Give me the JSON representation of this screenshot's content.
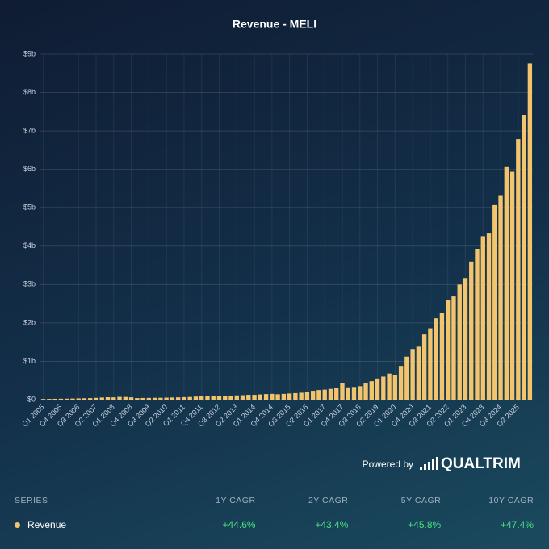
{
  "chart_data": {
    "type": "bar",
    "title": "Revenue - MELI",
    "categories": [
      "Q1 2005",
      null,
      null,
      "Q4 2005",
      null,
      null,
      "Q3 2006",
      null,
      null,
      "Q2 2007",
      null,
      null,
      "Q1 2008",
      null,
      null,
      "Q4 2008",
      null,
      null,
      "Q3 2009",
      null,
      null,
      "Q2 2010",
      null,
      null,
      "Q1 2011",
      null,
      null,
      "Q4 2011",
      null,
      null,
      "Q3 2012",
      null,
      null,
      "Q2 2013",
      null,
      null,
      "Q1 2014",
      null,
      null,
      "Q4 2014",
      null,
      null,
      "Q3 2015",
      null,
      null,
      "Q2 2016",
      null,
      null,
      "Q1 2017",
      null,
      null,
      "Q4 2017",
      null,
      null,
      "Q3 2018",
      null,
      null,
      "Q2 2019",
      null,
      null,
      "Q1 2020",
      null,
      null,
      "Q4 2020",
      null,
      null,
      "Q3 2021",
      null,
      null,
      "Q2 2022",
      null,
      null,
      "Q1 2023",
      null,
      null,
      "Q4 2023",
      null,
      null,
      "Q3 2024",
      null,
      null,
      "Q2 2025",
      null,
      null
    ],
    "values": [
      0.018,
      0.02,
      0.022,
      0.024,
      0.025,
      0.029,
      0.033,
      0.037,
      0.04,
      0.047,
      0.055,
      0.063,
      0.06,
      0.072,
      0.07,
      0.06,
      0.04,
      0.043,
      0.045,
      0.048,
      0.048,
      0.052,
      0.056,
      0.06,
      0.065,
      0.07,
      0.08,
      0.085,
      0.09,
      0.095,
      0.095,
      0.1,
      0.105,
      0.11,
      0.115,
      0.125,
      0.125,
      0.135,
      0.145,
      0.15,
      0.14,
      0.15,
      0.16,
      0.17,
      0.18,
      0.2,
      0.23,
      0.25,
      0.26,
      0.28,
      0.3,
      0.43,
      0.32,
      0.33,
      0.35,
      0.42,
      0.48,
      0.55,
      0.6,
      0.68,
      0.65,
      0.88,
      1.12,
      1.32,
      1.38,
      1.7,
      1.86,
      2.12,
      2.25,
      2.6,
      2.69,
      3.0,
      3.17,
      3.6,
      3.93,
      4.26,
      4.33,
      5.07,
      5.31,
      6.06,
      5.94,
      6.79,
      7.41,
      8.76
    ],
    "series_name": "Revenue",
    "color": "#f2c46d",
    "ylim": [
      0,
      9
    ],
    "yticks": [
      {
        "value": 0,
        "label": "$0"
      },
      {
        "value": 1,
        "label": "$1b"
      },
      {
        "value": 2,
        "label": "$2b"
      },
      {
        "value": 3,
        "label": "$3b"
      },
      {
        "value": 4,
        "label": "$4b"
      },
      {
        "value": 5,
        "label": "$5b"
      },
      {
        "value": 6,
        "label": "$6b"
      },
      {
        "value": 7,
        "label": "$7b"
      },
      {
        "value": 8,
        "label": "$8b"
      },
      {
        "value": 9,
        "label": "$9b"
      }
    ],
    "grid": true
  },
  "footer": {
    "powered": "Powered by",
    "brand": "QUALTRIM"
  },
  "table": {
    "header": [
      "SERIES",
      "1Y CAGR",
      "2Y CAGR",
      "5Y CAGR",
      "10Y CAGR"
    ],
    "rows": [
      [
        "Revenue",
        "+44.6%",
        "+43.4%",
        "+45.8%",
        "+47.4%"
      ]
    ]
  }
}
